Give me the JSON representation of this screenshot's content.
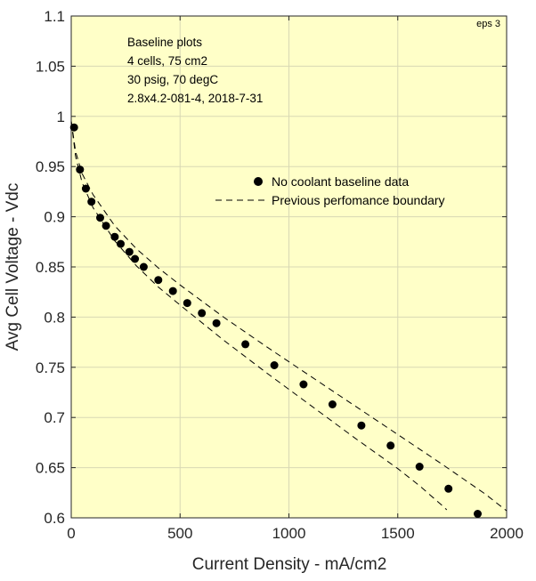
{
  "chart_data": {
    "type": "scatter",
    "xlabel": "Current Density - mA/cm2",
    "ylabel": "Avg Cell Voltage - Vdc",
    "xlim": [
      0,
      2000
    ],
    "ylim": [
      0.6,
      1.1
    ],
    "xticks": [
      "0",
      "500",
      "1000",
      "1500",
      "2000"
    ],
    "yticks": [
      "0.6",
      "0.65",
      "0.7",
      "0.75",
      "0.8",
      "0.85",
      "0.9",
      "0.95",
      "1",
      "1.05",
      "1.1"
    ],
    "grid": true,
    "background_color": "#FFFFC8",
    "corner_label": "eps 3",
    "annotations": [
      "Baseline plots",
      "4 cells, 75 cm2",
      "30 psig, 70 degC",
      "2.8x4.2-081-4, 2018-7-31"
    ],
    "legend": {
      "placement": "upper-right",
      "entries": [
        "No coolant baseline data",
        "Previous perfomance boundary"
      ]
    },
    "series": [
      {
        "name": "No coolant baseline data",
        "style": "markers",
        "x": [
          13,
          40,
          67,
          93,
          133,
          160,
          200,
          227,
          267,
          293,
          333,
          400,
          467,
          533,
          600,
          667,
          800,
          933,
          1067,
          1200,
          1333,
          1467,
          1600,
          1733,
          1867
        ],
        "y": [
          0.989,
          0.947,
          0.928,
          0.915,
          0.899,
          0.891,
          0.88,
          0.873,
          0.865,
          0.858,
          0.85,
          0.837,
          0.826,
          0.814,
          0.804,
          0.794,
          0.773,
          0.752,
          0.733,
          0.713,
          0.692,
          0.672,
          0.651,
          0.629,
          0.604
        ]
      },
      {
        "name": "Previous perfomance boundary",
        "style": "dashed",
        "x": [
          0,
          20,
          50,
          100,
          200,
          300,
          400,
          500,
          700,
          900,
          1100,
          1300,
          1500,
          1700,
          1900,
          2000
        ],
        "y": [
          0.995,
          0.965,
          0.943,
          0.922,
          0.891,
          0.868,
          0.849,
          0.832,
          0.8,
          0.77,
          0.741,
          0.712,
          0.683,
          0.654,
          0.624,
          0.607
        ]
      },
      {
        "name": "",
        "style": "dashed",
        "x": [
          0,
          20,
          50,
          100,
          200,
          300,
          400,
          500,
          700,
          900,
          1100,
          1300,
          1500,
          1600,
          1700,
          1725
        ],
        "y": [
          0.995,
          0.96,
          0.934,
          0.909,
          0.876,
          0.851,
          0.83,
          0.812,
          0.777,
          0.744,
          0.712,
          0.68,
          0.649,
          0.632,
          0.613,
          0.608
        ]
      }
    ]
  }
}
